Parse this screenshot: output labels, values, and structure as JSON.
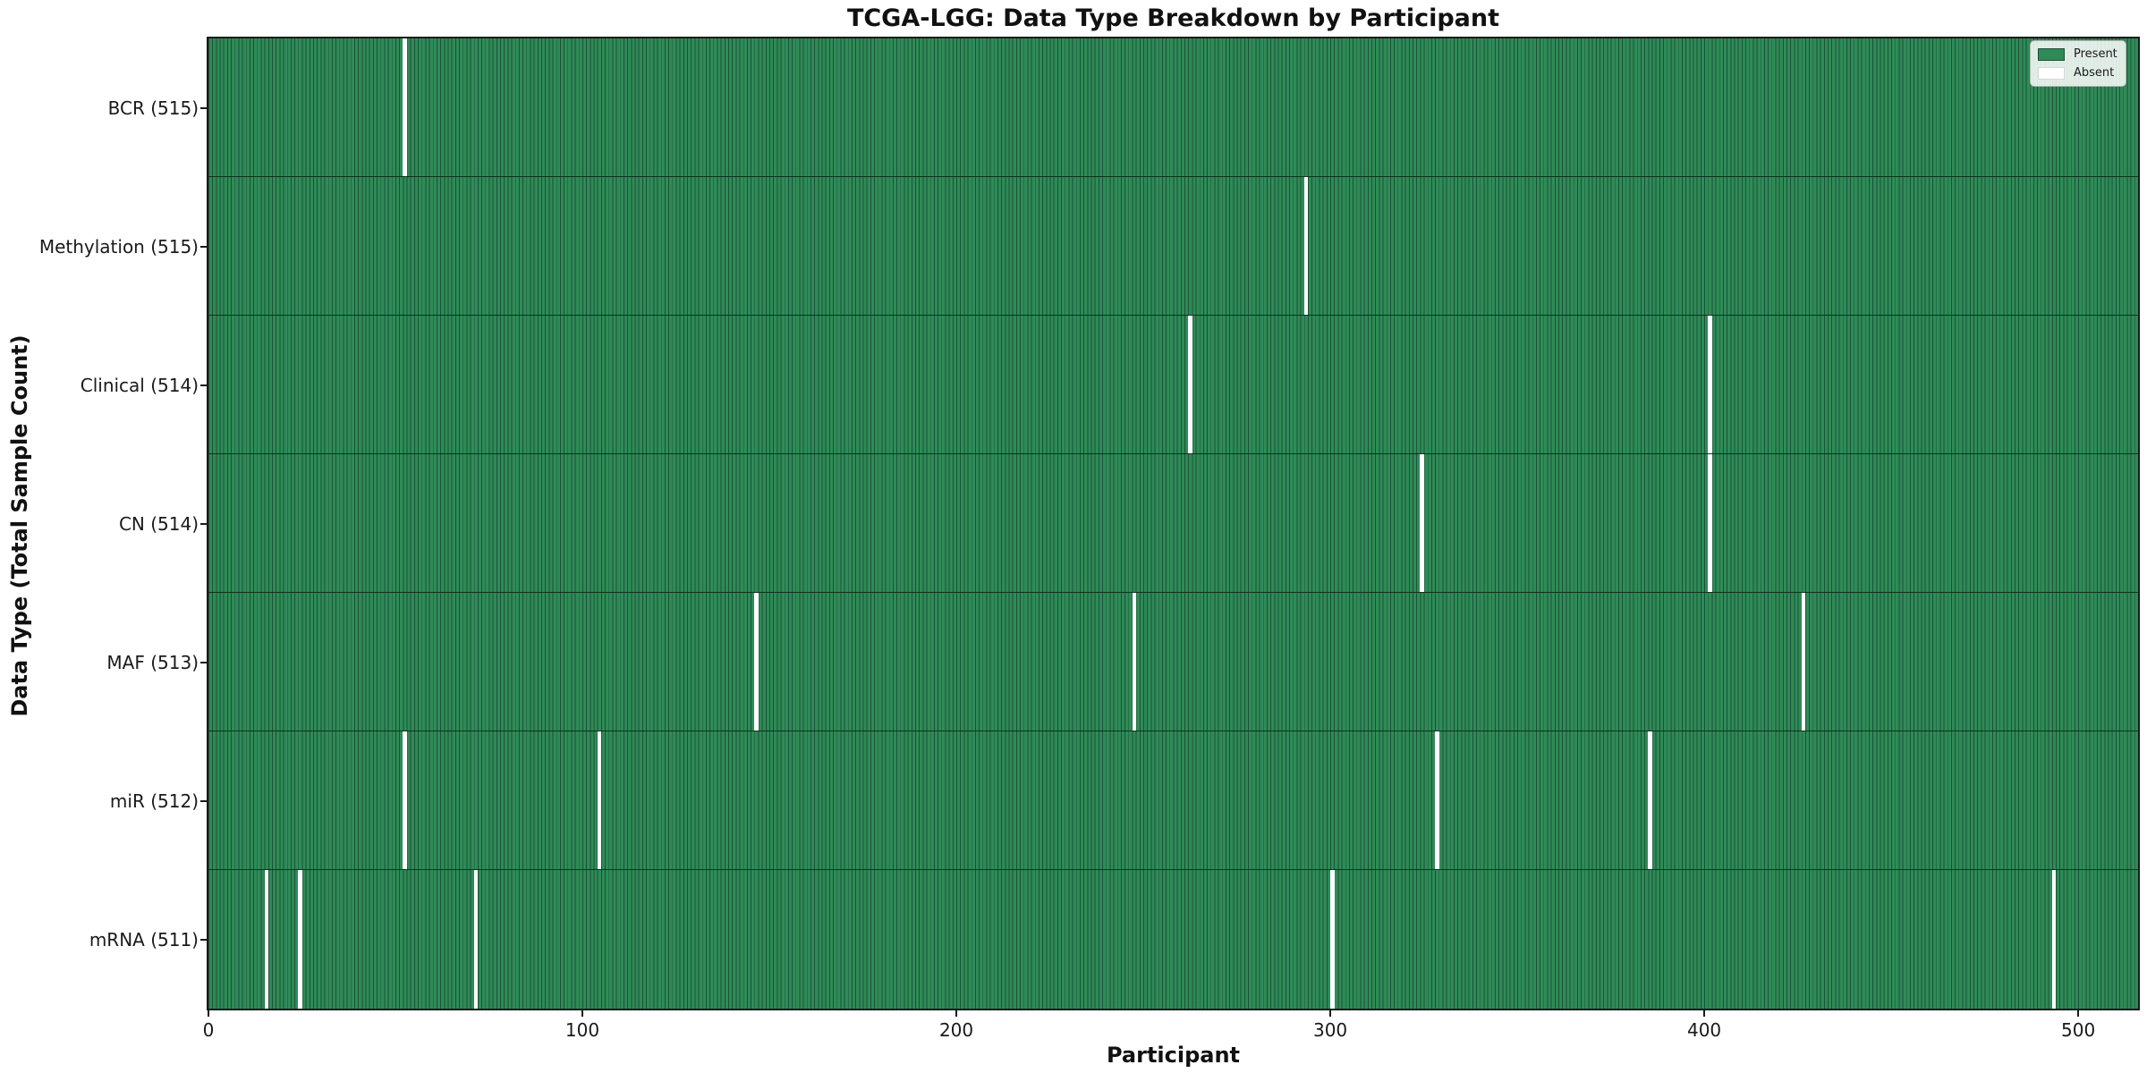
{
  "chart_data": {
    "type": "heatmap",
    "title": "TCGA-LGG: Data Type Breakdown by Participant",
    "xlabel": "Participant",
    "ylabel": "Data Type (Total Sample Count)",
    "x_ticks": [
      0,
      100,
      200,
      300,
      400,
      500
    ],
    "x_range": [
      0,
      516
    ],
    "total_participants": 516,
    "grid": false,
    "legend": {
      "position": "upper right",
      "entries": [
        {
          "label": "Present",
          "color": "#2e8b57"
        },
        {
          "label": "Absent",
          "color": "#ffffff"
        }
      ]
    },
    "rows": [
      {
        "label": "BCR (515)",
        "data_type": "BCR",
        "total_samples": 515,
        "absent_participants": [
          52
        ]
      },
      {
        "label": "Methylation (515)",
        "data_type": "Methylation",
        "total_samples": 515,
        "absent_participants": [
          293
        ]
      },
      {
        "label": "Clinical (514)",
        "data_type": "Clinical",
        "total_samples": 514,
        "absent_participants": [
          262,
          401
        ]
      },
      {
        "label": "CN (514)",
        "data_type": "CN",
        "total_samples": 514,
        "absent_participants": [
          324,
          401
        ]
      },
      {
        "label": "MAF (513)",
        "data_type": "MAF",
        "total_samples": 513,
        "absent_participants": [
          146,
          247,
          426
        ]
      },
      {
        "label": "miR (512)",
        "data_type": "miR",
        "total_samples": 512,
        "absent_participants": [
          52,
          104,
          328,
          385
        ]
      },
      {
        "label": "mRNA (511)",
        "data_type": "mRNA",
        "total_samples": 511,
        "absent_participants": [
          15,
          24,
          71,
          300,
          493
        ]
      }
    ],
    "colors": {
      "present": "#2e8b57",
      "absent": "#ffffff",
      "bar_edge": "#1d5137",
      "spine": "#1a1a1a"
    }
  }
}
